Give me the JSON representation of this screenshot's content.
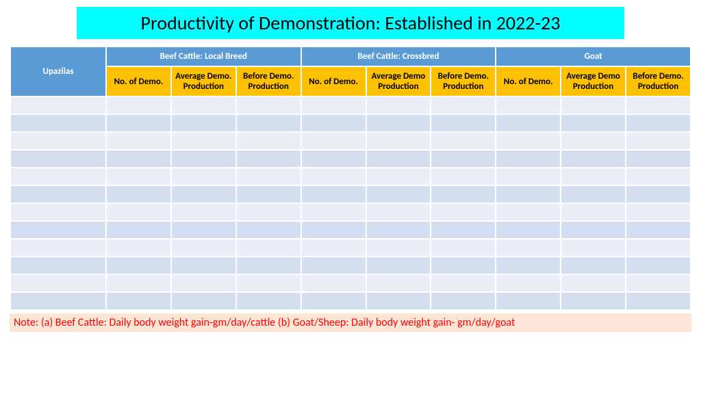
{
  "title": {
    "text": "Productivity of Demonstration: Established in 2022-23",
    "background": "#00ffff",
    "color": "#000000",
    "fontsize": 28
  },
  "table": {
    "header_blue_bg": "#5b9bd5",
    "header_yellow_bg": "#ffc000",
    "row_odd_bg": "#eaeff7",
    "row_even_bg": "#d2deef",
    "border_color": "#ffffff",
    "row_label": "Upazilas",
    "groups": [
      "Beef Cattle: Local Breed",
      "Beef Cattle: Crossbred",
      "Goat"
    ],
    "sub_headers_group1": [
      "No. of Demo.",
      "Average Demo. Production",
      "Before Demo. Production"
    ],
    "sub_headers_group2": [
      "No. of Demo.",
      "Average Demo Production",
      "Before Demo. Production"
    ],
    "sub_headers_group3": [
      "No. of Demo.",
      "Average Demo Production",
      "Before Demo. Production"
    ],
    "num_data_rows": 12
  },
  "note": {
    "text": "Note: (a) Beef Cattle: Daily body weight gain-gm/day/cattle (b) Goat/Sheep: Daily body weight gain- gm/day/goat",
    "background": "#fbe5d6",
    "color": "#ff0000",
    "fontsize": 16
  }
}
